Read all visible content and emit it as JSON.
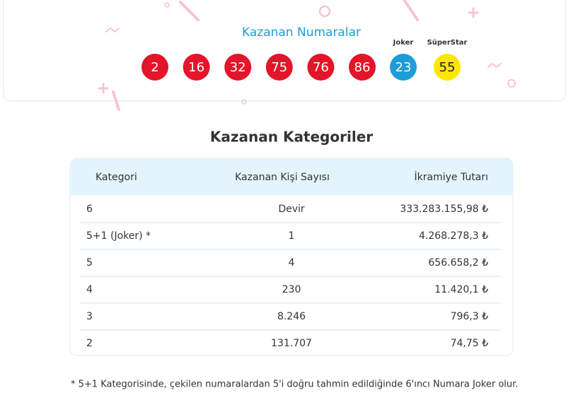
{
  "header": {
    "title": "Kazanan Numaralar",
    "numbers": [
      2,
      16,
      32,
      75,
      76,
      86
    ],
    "joker": {
      "label": "Joker",
      "value": 23
    },
    "superstar": {
      "label": "SüperStar",
      "value": 55
    }
  },
  "section_title": "Kazanan Kategoriler",
  "table": {
    "columns": [
      "Kategori",
      "Kazanan Kişi Sayısı",
      "İkramiye Tutarı"
    ],
    "rows": [
      [
        "6",
        "Devir",
        "333.283.155,98 ₺"
      ],
      [
        "5+1 (Joker) *",
        "1",
        "4.268.278,3 ₺"
      ],
      [
        "5",
        "4",
        "656.658,2 ₺"
      ],
      [
        "4",
        "230",
        "11.420,1 ₺"
      ],
      [
        "3",
        "8.246",
        "796,3 ₺"
      ],
      [
        "2",
        "131.707",
        "74,75 ₺"
      ]
    ]
  },
  "footnote": "* 5+1 Kategorisinde, çekilen numaralardan 5'i doğru tahmin edildiğinde 6'ıncı Numara Joker olur."
}
